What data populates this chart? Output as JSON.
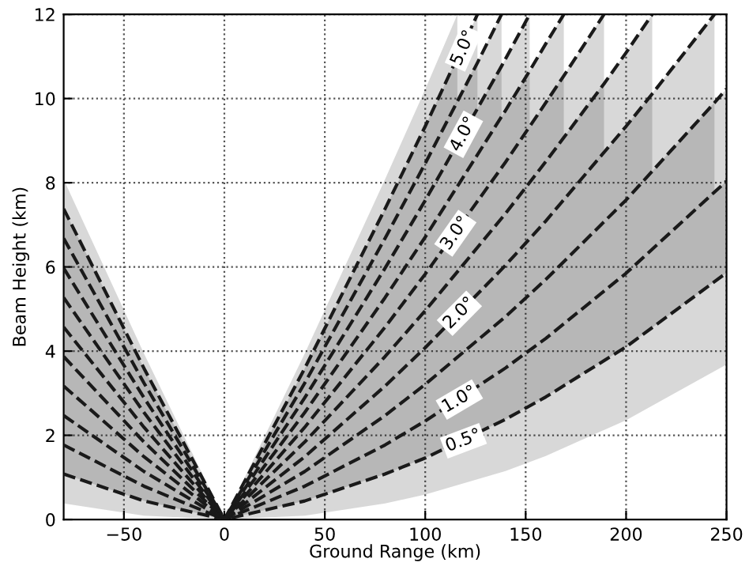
{
  "chart_data": {
    "type": "line",
    "xlabel": "Ground Range (km)",
    "ylabel": "Beam Height (km)",
    "xlim": [
      -80,
      250
    ],
    "ylim": [
      0,
      12
    ],
    "xticks": [
      {
        "value": -50,
        "label": "−50"
      },
      0,
      50,
      100,
      150,
      200,
      250
    ],
    "yticks": [
      0,
      2,
      4,
      6,
      8,
      10,
      12
    ],
    "grid": true,
    "line_style": "dashed",
    "marker": "none",
    "series": [
      {
        "color": "#1a1a1a",
        "x": [
          -80,
          -40,
          0,
          40,
          80,
          100,
          140,
          160,
          200,
          250
        ],
        "values": [
          1.08,
          0.44,
          0,
          0.44,
          1.08,
          1.46,
          2.38,
          2.91,
          4.1,
          5.86
        ],
        "lower": [
          0.38,
          0.09,
          0,
          0.09,
          0.38,
          0.59,
          1.15,
          1.51,
          2.36,
          3.68
        ],
        "upper": [
          1.77,
          0.79,
          0,
          0.79,
          1.77,
          2.34,
          3.6,
          4.3,
          5.85,
          8.04
        ]
      },
      {
        "color": "#1a1a1a",
        "x": [
          -80,
          -40,
          0,
          40,
          80,
          100,
          140,
          160,
          200,
          250
        ],
        "values": [
          1.77,
          0.79,
          0,
          0.79,
          1.77,
          2.34,
          3.6,
          4.3,
          5.85,
          8.04
        ],
        "lower": [
          1.08,
          0.44,
          0,
          0.44,
          1.08,
          1.46,
          2.38,
          2.91,
          4.1,
          5.86
        ],
        "upper": [
          2.47,
          1.14,
          0,
          1.14,
          2.47,
          3.21,
          4.82,
          5.7,
          7.59,
          10.23
        ]
      },
      {
        "color": "#1a1a1a",
        "x": [
          -80,
          -40,
          0,
          40,
          80,
          100,
          140,
          160,
          200,
          244,
          250
        ],
        "values": [
          2.47,
          1.14,
          0,
          1.14,
          2.47,
          3.21,
          4.82,
          5.7,
          7.59,
          9.9,
          10.23
        ],
        "lower": [
          1.77,
          0.79,
          0,
          0.79,
          1.77,
          2.34,
          3.6,
          4.3,
          5.85,
          7.76,
          null
        ],
        "upper": [
          3.17,
          1.49,
          0,
          1.49,
          3.17,
          4.08,
          6.04,
          7.09,
          9.34,
          12,
          null
        ]
      },
      {
        "color": "#1a1a1a",
        "x": [
          -80,
          -40,
          0,
          40,
          80,
          100,
          140,
          160,
          200,
          213,
          244
        ],
        "values": [
          3.17,
          1.49,
          0,
          1.49,
          3.17,
          4.08,
          6.04,
          7.09,
          9.34,
          10.11,
          12
        ],
        "lower": [
          2.47,
          1.14,
          0,
          1.14,
          2.47,
          3.21,
          4.82,
          5.7,
          7.59,
          8.25,
          null
        ],
        "upper": [
          3.87,
          1.84,
          0,
          1.84,
          3.87,
          4.96,
          7.27,
          8.5,
          11.09,
          12,
          null
        ]
      },
      {
        "color": "#1a1a1a",
        "x": [
          -80,
          -40,
          0,
          40,
          80,
          100,
          140,
          160,
          189,
          200,
          213
        ],
        "values": [
          3.87,
          1.84,
          0,
          1.84,
          3.87,
          4.96,
          7.27,
          8.5,
          10.35,
          11.09,
          12
        ],
        "lower": [
          3.17,
          1.49,
          0,
          1.49,
          3.17,
          4.08,
          6.04,
          7.09,
          8.7,
          null,
          null
        ],
        "upper": [
          4.57,
          2.19,
          0,
          2.19,
          4.57,
          5.83,
          8.49,
          9.9,
          12,
          null,
          null
        ]
      },
      {
        "color": "#1a1a1a",
        "x": [
          -80,
          -40,
          0,
          40,
          80,
          100,
          140,
          160,
          169,
          189
        ],
        "values": [
          4.57,
          2.19,
          0,
          2.19,
          4.57,
          5.83,
          8.49,
          9.9,
          10.54,
          12
        ],
        "lower": [
          3.87,
          1.84,
          0,
          1.84,
          3.87,
          4.96,
          7.27,
          8.5,
          9.06,
          null
        ],
        "upper": [
          5.27,
          2.54,
          0,
          2.54,
          5.27,
          6.71,
          9.72,
          11.3,
          12,
          null
        ]
      },
      {
        "color": "#1a1a1a",
        "x": [
          -80,
          -40,
          0,
          40,
          80,
          100,
          140,
          152,
          160,
          169
        ],
        "values": [
          5.27,
          2.54,
          0,
          2.54,
          5.27,
          6.71,
          9.72,
          10.66,
          11.3,
          12
        ],
        "lower": [
          4.57,
          2.19,
          0,
          2.19,
          4.57,
          5.83,
          8.49,
          9.33,
          null,
          null
        ],
        "upper": [
          5.97,
          2.89,
          0,
          2.89,
          5.97,
          7.58,
          10.94,
          12,
          null,
          null
        ]
      },
      {
        "color": "#1a1a1a",
        "x": [
          -80,
          -40,
          0,
          40,
          80,
          100,
          138,
          152
        ],
        "values": [
          5.97,
          2.89,
          0,
          2.89,
          5.97,
          7.58,
          10.77,
          12
        ],
        "lower": [
          5.27,
          2.54,
          0,
          2.54,
          5.27,
          6.71,
          9.56,
          null
        ],
        "upper": [
          6.68,
          3.24,
          0,
          3.24,
          6.68,
          8.46,
          12,
          null
        ]
      },
      {
        "color": "#1a1a1a",
        "x": [
          -80,
          -40,
          0,
          40,
          80,
          100,
          126,
          138
        ],
        "values": [
          6.68,
          3.24,
          0,
          3.24,
          6.68,
          8.46,
          10.85,
          12
        ],
        "lower": [
          5.97,
          2.89,
          0,
          2.89,
          5.97,
          7.58,
          9.75,
          null
        ],
        "upper": [
          7.38,
          3.59,
          0,
          3.59,
          7.38,
          9.34,
          12,
          null
        ]
      },
      {
        "color": "#1a1a1a",
        "x": [
          -80,
          -40,
          0,
          40,
          80,
          100,
          116,
          126
        ],
        "values": [
          7.38,
          3.59,
          0,
          3.59,
          7.38,
          9.34,
          null,
          12
        ],
        "lower": [
          6.68,
          3.24,
          0,
          3.24,
          6.68,
          8.46,
          9.92,
          null
        ],
        "upper": [
          8.08,
          3.94,
          0,
          3.94,
          8.08,
          10.22,
          12,
          null
        ]
      }
    ],
    "annotations": [
      {
        "text": "0.5°",
        "x": 119,
        "y": 1.87
      },
      {
        "text": "1.0°",
        "x": 117,
        "y": 2.85
      },
      {
        "text": "2.0°",
        "x": 117,
        "y": 4.9
      },
      {
        "text": "3.0°",
        "x": 115,
        "y": 6.8
      },
      {
        "text": "4.0°",
        "x": 119,
        "y": 9.15
      },
      {
        "text": "5.0°",
        "x": 119,
        "y": 11.2
      }
    ]
  }
}
